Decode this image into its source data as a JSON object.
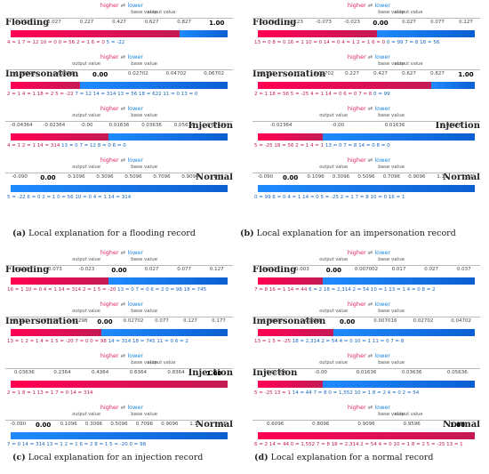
{
  "panels": [
    {
      "caption_letter": "(a)",
      "caption_text": "Local explanation for a flooding record",
      "plots": [
        {
          "name": "Flooding",
          "ticks": [
            "-0.173",
            "0.027",
            "0.227",
            "0.427",
            "0.627",
            "0.827",
            "1.00"
          ],
          "output": "1.00",
          "feats_red": [
            "4 = 1",
            "7 = 12",
            "10 = 0",
            "0 = 56",
            "2 = 1",
            "6 = 0"
          ],
          "feats_blue": [
            "5 = -22"
          ],
          "split": 0.78
        },
        {
          "name": "Impersonation",
          "ticks": [
            "-0.03298",
            "-0.01298",
            "0.00",
            "0.02702",
            "0.04702",
            "0.06702"
          ],
          "output": "0.00",
          "feats_red": [
            "2 = 1",
            "4 = 1",
            "18 = 2",
            "5 = -22"
          ],
          "feats_blue": [
            "7 = 12",
            "14 = 314",
            "13 = 56",
            "18 = 622",
            "11 = 0",
            "13 = 0"
          ],
          "split": 0.32
        },
        {
          "name": "Injection",
          "ticks": [
            "-0.04364",
            "-0.02364",
            "-0.00",
            "0.01636",
            "0.03636",
            "0.05636",
            "0.07636"
          ],
          "output": "0.00",
          "feats_red": [
            "4 = 1",
            "2 = 1",
            "14 = 314"
          ],
          "feats_blue": [
            "13 = 0",
            "7 = 12",
            "8 = 0",
            "6 = 0"
          ],
          "split": 0.45
        },
        {
          "name": "Normal",
          "ticks": [
            "-0.090",
            "0.00",
            "0.1096",
            "0.3096",
            "0.5096",
            "0.7096",
            "0.9096",
            "1.11"
          ],
          "output": "0.00",
          "feats_red": [],
          "feats_blue": [
            "5 = -22",
            "6 = 0",
            "2 = 1",
            "0 = 56",
            "10 = 0",
            "4 = 1",
            "14 = 314"
          ],
          "split": 0.05
        }
      ]
    },
    {
      "caption_letter": "(b)",
      "caption_text": "Local explanation for an impersonation record",
      "plots": [
        {
          "name": "Flooding",
          "ticks": [
            "-0.173",
            "-0.123",
            "-0.073",
            "-0.023",
            "0.00",
            "0.027",
            "0.077",
            "0.127"
          ],
          "output": "0.00",
          "feats_red": [
            "13 = 0",
            "8 = 0",
            "16 = 1",
            "10 = 0",
            "14 = 0",
            "4 = 1",
            "2 = 1",
            "6 = 0"
          ],
          "feats_blue": [
            "0 = 99",
            "7 = 8",
            "18 = 56"
          ],
          "split": 0.55
        },
        {
          "name": "Impersonation",
          "ticks": [
            "-0.373",
            "-0.173",
            "0.02702",
            "0.227",
            "0.427",
            "0.627",
            "0.827",
            "1.00"
          ],
          "output": "1.00",
          "feats_red": [
            "2 = 1",
            "18 = 56",
            "5 = -25",
            "4 = 1",
            "14 = 0",
            "6 = 0",
            "7 = 8"
          ],
          "feats_blue": [
            "0 = 99"
          ],
          "split": 0.8
        },
        {
          "name": "Injection",
          "ticks": [
            "-0.02364",
            "-0.00",
            "0.01636",
            "0.03636"
          ],
          "output": "0.00",
          "feats_red": [
            "5 = -25",
            "18 = 56",
            "2 = 1",
            "4 = 1"
          ],
          "feats_blue": [
            "13 = 0",
            "7 = 8",
            "14 = 0",
            "8 = 0"
          ],
          "split": 0.3
        },
        {
          "name": "Normal",
          "ticks": [
            "-0.090",
            "0.00",
            "0.1096",
            "0.3096",
            "0.5096",
            "0.7096",
            "0.9096",
            "1.11",
            "1.31"
          ],
          "output": "0.00",
          "feats_red": [],
          "feats_blue": [
            "0 = 99",
            "6 = 0",
            "4 = 1",
            "14 = 0",
            "5 = -25",
            "2 = 1",
            "7 = 8",
            "10 = 0",
            "16 = 1"
          ],
          "split": 0.05
        }
      ]
    },
    {
      "caption_letter": "(c)",
      "caption_text": "Local explanation for an injection record",
      "plots": [
        {
          "name": "Flooding",
          "ticks": [
            "0.123",
            "-0.073",
            "-0.023",
            "0.00",
            "0.027",
            "0.077",
            "0.127"
          ],
          "output": "0.00",
          "feats_red": [
            "16 = 1",
            "10 = 0",
            "4 = 1",
            "14 = 314",
            "2 = 1",
            "5 = -20"
          ],
          "feats_blue": [
            "13 = 0",
            "7 = 0",
            "6 = 2",
            "0 = 98",
            "18 = 745"
          ],
          "split": 0.45
        },
        {
          "name": "Impersonation",
          "ticks": [
            "-0.123",
            "-0.07298",
            "-0.02298",
            "0.00",
            "0.02702",
            "0.077",
            "0.127",
            "0.177"
          ],
          "output": "0.00",
          "feats_red": [
            "13 = 1",
            "2 = 1",
            "4 = 1",
            "5 = -20",
            "7 = 0",
            "0 = 98"
          ],
          "feats_blue": [
            "14 = 314",
            "18 = 745",
            "11 = 0",
            "6 = 2"
          ],
          "split": 0.42
        },
        {
          "name": "Injection",
          "ticks": [
            "0.03636",
            "0.2364",
            "0.4364",
            "0.6364",
            "0.8364",
            "1.00"
          ],
          "output": "1.00",
          "feats_red": [
            "2 = 1",
            "8 = 1",
            "13 = 1",
            "7 = 0",
            "14 = 314"
          ],
          "feats_blue": [],
          "split": 0.9
        },
        {
          "name": "Normal",
          "ticks": [
            "-0.090",
            "0.00",
            "0.1096",
            "0.3096",
            "0.5096",
            "0.7096",
            "0.9096",
            "1.11",
            "1.31"
          ],
          "output": "0.00",
          "feats_red": [],
          "feats_blue": [
            "7 = 0",
            "14 = 314",
            "13 = 1",
            "2 = 1",
            "6 = 2",
            "8 = 1",
            "5 = -20",
            "0 = 98"
          ],
          "split": 0.05
        }
      ]
    },
    {
      "caption_letter": "(d)",
      "caption_text": "Local explanation for a normal record",
      "plots": [
        {
          "name": "Flooding",
          "ticks": [
            "-0.013",
            "-0.003",
            "0.00",
            "0.007002",
            "0.017",
            "0.027",
            "0.037"
          ],
          "output": "0.00",
          "feats_red": [
            "7 = 8",
            "16 = 1",
            "14 = 44"
          ],
          "feats_blue": [
            "6 = 2",
            "18 = 2,314",
            "2 = 54",
            "10 = 1",
            "13 = 1",
            "4 = 0",
            "8 = 2"
          ],
          "split": 0.3
        },
        {
          "name": "Impersonation",
          "ticks": [
            "-0.03298",
            "-0.01298",
            "0.00",
            "0.007016",
            "0.02702",
            "0.04702"
          ],
          "output": "0.00",
          "feats_red": [
            "13 = 1",
            "5 = -25"
          ],
          "feats_blue": [
            "18 = 2,314",
            "2 = 54",
            "4 = 0",
            "10 = 1",
            "11 = 0",
            "7 = 8"
          ],
          "split": 0.35
        },
        {
          "name": "Injection",
          "ticks": [
            "-0.02364",
            "-0.00",
            "0.01636",
            "0.03636",
            "0.05636"
          ],
          "output": "0.00",
          "feats_red": [
            "5 = -25",
            "13 = 1"
          ],
          "feats_blue": [
            "14 = 44",
            "7 = 8",
            "0 = 1,552",
            "10 = 1",
            "8 = 2",
            "4 = 0",
            "2 = 54"
          ],
          "split": 0.3
        },
        {
          "name": "Normal",
          "ticks": [
            "0.6096",
            "0.8096",
            "0.9096",
            "0.9596",
            "1.00"
          ],
          "output": "1.00",
          "feats_red": [
            "6 = 2",
            "14 = 44",
            "0 = 1,552",
            "7 = 8",
            "18 = 2,314",
            "2 = 54",
            "4 = 0",
            "10 = 1",
            "8 = 2",
            "5 = -25",
            "13 = 1"
          ],
          "feats_blue": [],
          "split": 0.92
        }
      ]
    }
  ],
  "legend": {
    "higher": "higher",
    "arrows": "⇄",
    "lower": "lower",
    "base_value": "base value",
    "output_value": "output value"
  }
}
